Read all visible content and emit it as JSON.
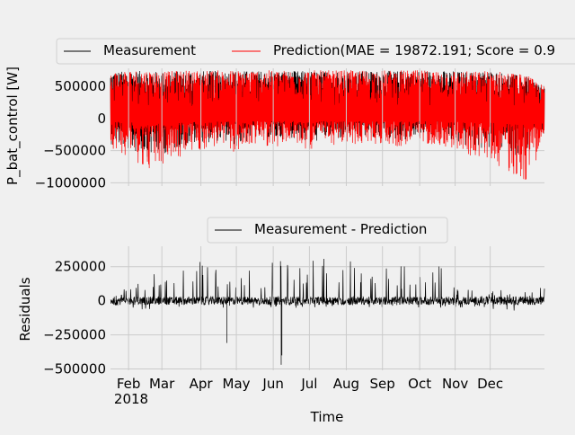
{
  "chart_data": [
    {
      "type": "line",
      "title": "",
      "xlabel": "",
      "ylabel": "P_bat_control [W]",
      "ylim": [
        -1050000,
        780000
      ],
      "yticks": [
        -1000000,
        -500000,
        0,
        500000
      ],
      "ytick_labels": [
        "−1000000",
        "−500000",
        "0",
        "500000"
      ],
      "xlim": [
        0,
        12
      ],
      "grid": true,
      "legend_placement": "top-center",
      "series": [
        {
          "name": "Measurement",
          "color": "#000000",
          "envelope_x": [
            0,
            0.5,
            1,
            1.5,
            2,
            2.5,
            3,
            3.5,
            4,
            4.5,
            5,
            5.5,
            6,
            6.5,
            7,
            7.5,
            8,
            8.5,
            9,
            9.5,
            10,
            10.5,
            11,
            11.5,
            12
          ],
          "envelope_max": [
            720000,
            740000,
            740000,
            720000,
            740000,
            740000,
            740000,
            740000,
            740000,
            740000,
            740000,
            740000,
            740000,
            740000,
            740000,
            740000,
            740000,
            740000,
            740000,
            740000,
            720000,
            740000,
            700000,
            650000,
            500000
          ],
          "envelope_min": [
            -400000,
            -500000,
            -600000,
            -550000,
            -450000,
            -400000,
            -350000,
            -450000,
            -300000,
            -350000,
            -300000,
            -400000,
            -300000,
            -350000,
            -300000,
            -300000,
            -350000,
            -300000,
            -300000,
            -400000,
            -450000,
            -500000,
            -550000,
            -600000,
            -250000
          ]
        },
        {
          "name": "Prediction(MAE = 19872.191; Score = 0.9",
          "color": "#ff0000",
          "envelope_x": [
            0,
            0.5,
            1,
            1.5,
            2,
            2.5,
            3,
            3.5,
            4,
            4.5,
            5,
            5.5,
            6,
            6.5,
            7,
            7.5,
            8,
            8.5,
            9,
            9.5,
            10,
            10.5,
            11,
            11.5,
            12
          ],
          "envelope_max": [
            730000,
            750000,
            750000,
            730000,
            750000,
            750000,
            750000,
            750000,
            750000,
            750000,
            750000,
            750000,
            750000,
            750000,
            750000,
            750000,
            750000,
            750000,
            750000,
            750000,
            730000,
            750000,
            720000,
            680000,
            500000
          ],
          "envelope_min": [
            -450000,
            -600000,
            -800000,
            -750000,
            -600000,
            -500000,
            -450000,
            -550000,
            -400000,
            -450000,
            -400000,
            -500000,
            -400000,
            -450000,
            -400000,
            -400000,
            -450000,
            -400000,
            -400000,
            -500000,
            -600000,
            -650000,
            -850000,
            -1000000,
            -350000
          ]
        }
      ]
    },
    {
      "type": "line",
      "title": "",
      "xlabel": "Time",
      "ylabel": "Residuals",
      "ylim": [
        -510000,
        400000
      ],
      "yticks": [
        -500000,
        -250000,
        0,
        250000
      ],
      "ytick_labels": [
        "−500000",
        "−250000",
        "0",
        "250000"
      ],
      "xlim": [
        0,
        12
      ],
      "xticks": [
        0.5,
        1.42,
        2.5,
        3.48,
        4.5,
        5.5,
        6.52,
        7.52,
        8.55,
        9.53,
        10.5
      ],
      "xtick_labels": [
        "Feb",
        "Mar",
        "Apr",
        "May",
        "Jun",
        "Jul",
        "Aug",
        "Sep",
        "Oct",
        "Nov",
        "Dec"
      ],
      "year_label": "2018",
      "grid": true,
      "legend_placement": "top-center",
      "series": [
        {
          "name": "Measurement - Prediction",
          "color": "#000000",
          "envelope_x": [
            0,
            0.5,
            1,
            1.5,
            2,
            2.5,
            3,
            3.5,
            4,
            4.5,
            5,
            5.5,
            6,
            6.5,
            7,
            7.5,
            8,
            8.5,
            9,
            9.5,
            10,
            10.5,
            11,
            11.5,
            12
          ],
          "envelope_max": [
            50000,
            120000,
            250000,
            200000,
            250000,
            300000,
            250000,
            300000,
            200000,
            300000,
            380000,
            350000,
            300000,
            330000,
            280000,
            300000,
            280000,
            200000,
            300000,
            150000,
            100000,
            80000,
            80000,
            100000,
            100000
          ],
          "envelope_min": [
            -40000,
            -50000,
            -70000,
            -60000,
            -50000,
            -50000,
            -50000,
            -60000,
            -50000,
            -50000,
            -60000,
            -60000,
            -50000,
            -50000,
            -50000,
            -50000,
            -50000,
            -50000,
            -50000,
            -50000,
            -50000,
            -60000,
            -70000,
            -80000,
            -90000
          ],
          "spikes": [
            {
              "x": 3.22,
              "y": -310000
            },
            {
              "x": 4.72,
              "y": -470000
            },
            {
              "x": 4.74,
              "y": -400000
            },
            {
              "x": 4.7,
              "y": 290000
            }
          ]
        }
      ]
    }
  ]
}
